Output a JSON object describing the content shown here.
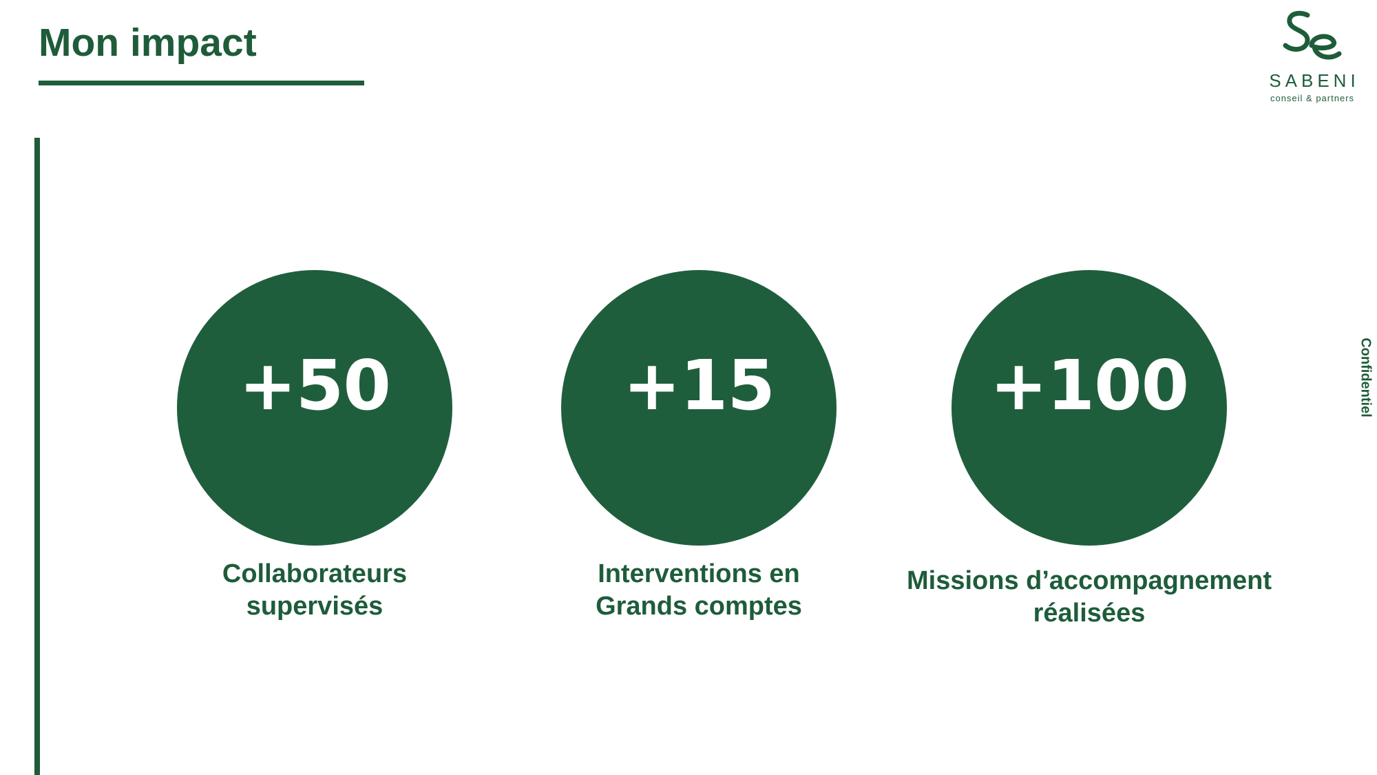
{
  "page": {
    "title": "Mon impact",
    "side_label": "Confidentiel"
  },
  "logo": {
    "monogram": "Se",
    "name": "SABENI",
    "tagline": "conseil & partners"
  },
  "stats": [
    {
      "value": "+50",
      "label_line1": "Collaborateurs",
      "label_line2": "supervisés"
    },
    {
      "value": "+15",
      "label_line1": "Interventions en",
      "label_line2": "Grands comptes"
    },
    {
      "value": "+100",
      "label_line1": "Missions d’accompagnement",
      "label_line2": "réalisées"
    }
  ],
  "colors": {
    "brand_green": "#1e5c3a",
    "circle_fill": "#1f5e3d",
    "background": "#ffffff"
  }
}
